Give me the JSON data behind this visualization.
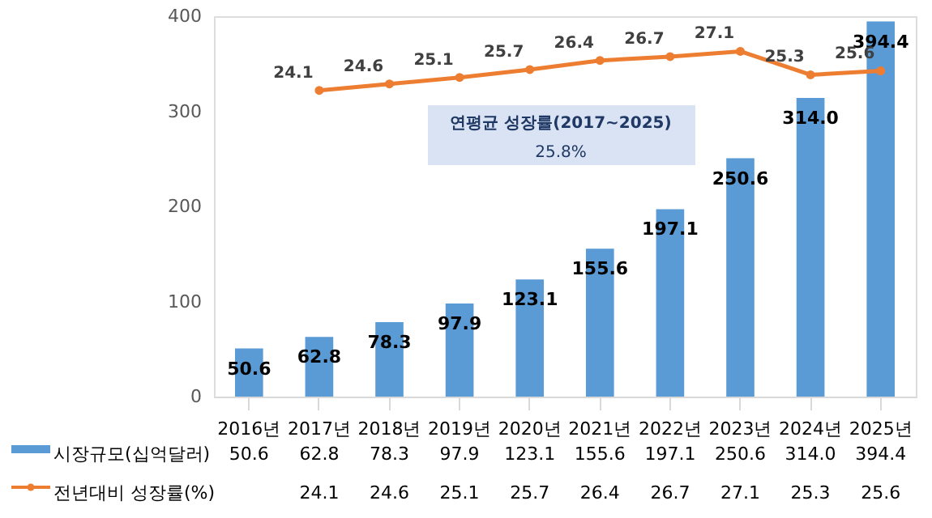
{
  "chart_data": {
    "type": "bar",
    "categories": [
      "2016년",
      "2017년",
      "2018년",
      "2019년",
      "2020년",
      "2021년",
      "2022년",
      "2023년",
      "2024년",
      "2025년"
    ],
    "series": [
      {
        "name": "시장규모(십억달러)",
        "color": "#5b9bd5",
        "values": [
          50.6,
          62.8,
          78.3,
          97.9,
          123.1,
          155.6,
          197.1,
          250.6,
          314.0,
          394.4
        ],
        "value_labels": [
          "50.6",
          "62.8",
          "78.3",
          "97.9",
          "123.1",
          "155.6",
          "197.1",
          "250.6",
          "314.0",
          "394.4"
        ]
      },
      {
        "name": "전년대비 성장률(%)",
        "color": "#ed7d31",
        "type": "line",
        "axis": "y2",
        "marker": "circle",
        "values": [
          null,
          24.1,
          24.6,
          25.1,
          25.7,
          26.4,
          26.7,
          27.1,
          25.3,
          25.6
        ],
        "value_labels": [
          null,
          "24.1",
          "24.6",
          "25.1",
          "25.7",
          "26.4",
          "26.7",
          "27.1",
          "25.3",
          "25.6"
        ]
      }
    ],
    "ylim": [
      0,
      400
    ],
    "yticks": [
      0,
      100,
      200,
      300,
      400
    ],
    "y2lim": [
      0.6,
      29.8
    ],
    "grid": false,
    "legend": "bottom",
    "annotations": [
      "연평균 성장률(2017~2025)",
      "25.8%"
    ]
  }
}
